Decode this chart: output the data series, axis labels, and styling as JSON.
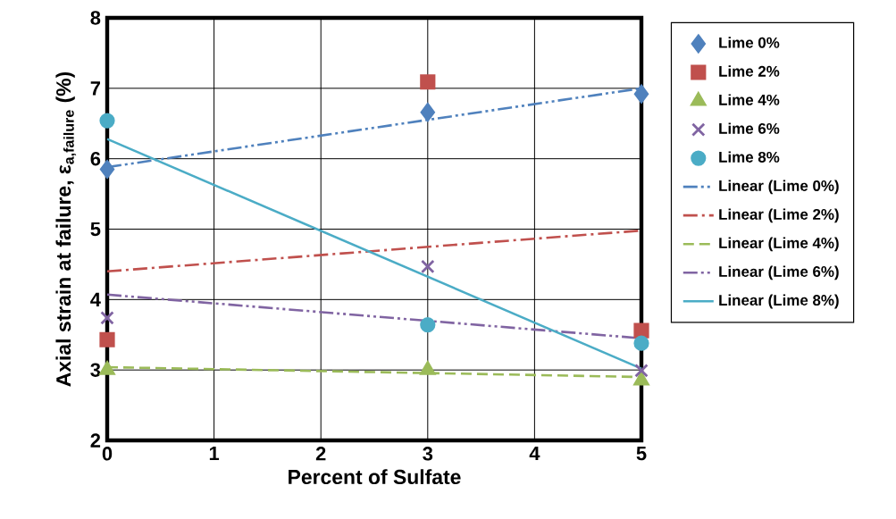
{
  "chart_data": {
    "type": "scatter",
    "xlabel": "Percent of Sulfate",
    "ylabel": "Axial strain at failure, ε$_{a,failure}$ (%)",
    "xlim": [
      0,
      5
    ],
    "ylim": [
      2,
      8
    ],
    "xticks": [
      0,
      1,
      2,
      3,
      4,
      5
    ],
    "yticks": [
      2,
      3,
      4,
      5,
      6,
      7,
      8
    ],
    "grid": true,
    "legend": "right",
    "series": [
      {
        "name": "Lime 0%",
        "marker": "diamond",
        "color": "#4f81bd",
        "x": [
          0,
          3,
          5
        ],
        "values": [
          5.85,
          6.66,
          6.92
        ]
      },
      {
        "name": "Lime 2%",
        "marker": "square",
        "color": "#c0504d",
        "x": [
          0,
          3,
          5
        ],
        "values": [
          3.43,
          7.09,
          3.56
        ]
      },
      {
        "name": "Lime 4%",
        "marker": "triangle",
        "color": "#9bbb59",
        "x": [
          0,
          3,
          5
        ],
        "values": [
          3.0,
          3.0,
          2.85
        ]
      },
      {
        "name": "Lime 6%",
        "marker": "cross",
        "color": "#8064a2",
        "x": [
          0,
          3,
          5
        ],
        "values": [
          3.74,
          4.47,
          2.99
        ]
      },
      {
        "name": "Lime 8%",
        "marker": "circle",
        "color": "#4bacc6",
        "x": [
          0,
          3,
          5
        ],
        "values": [
          6.54,
          3.64,
          3.38
        ]
      },
      {
        "name": "Linear (Lime 0%)",
        "type": "line",
        "line_style": "dashdotdot",
        "color": "#4f81bd",
        "x": [
          0,
          5
        ],
        "values": [
          5.88,
          7.0
        ]
      },
      {
        "name": "Linear (Lime 2%)",
        "type": "line",
        "line_style": "dashdot",
        "color": "#c0504d",
        "x": [
          0,
          5
        ],
        "values": [
          4.4,
          4.98
        ]
      },
      {
        "name": "Linear (Lime 4%)",
        "type": "line",
        "line_style": "dashed",
        "color": "#9bbb59",
        "x": [
          0,
          5
        ],
        "values": [
          3.04,
          2.9
        ]
      },
      {
        "name": "Linear (Lime 6%)",
        "type": "line",
        "line_style": "dashdotdot",
        "color": "#8064a2",
        "x": [
          0,
          5
        ],
        "values": [
          4.07,
          3.45
        ]
      },
      {
        "name": "Linear (Lime 8%)",
        "type": "line",
        "line_style": "solid",
        "color": "#4bacc6",
        "x": [
          0,
          5
        ],
        "values": [
          6.28,
          3.02
        ]
      }
    ]
  }
}
